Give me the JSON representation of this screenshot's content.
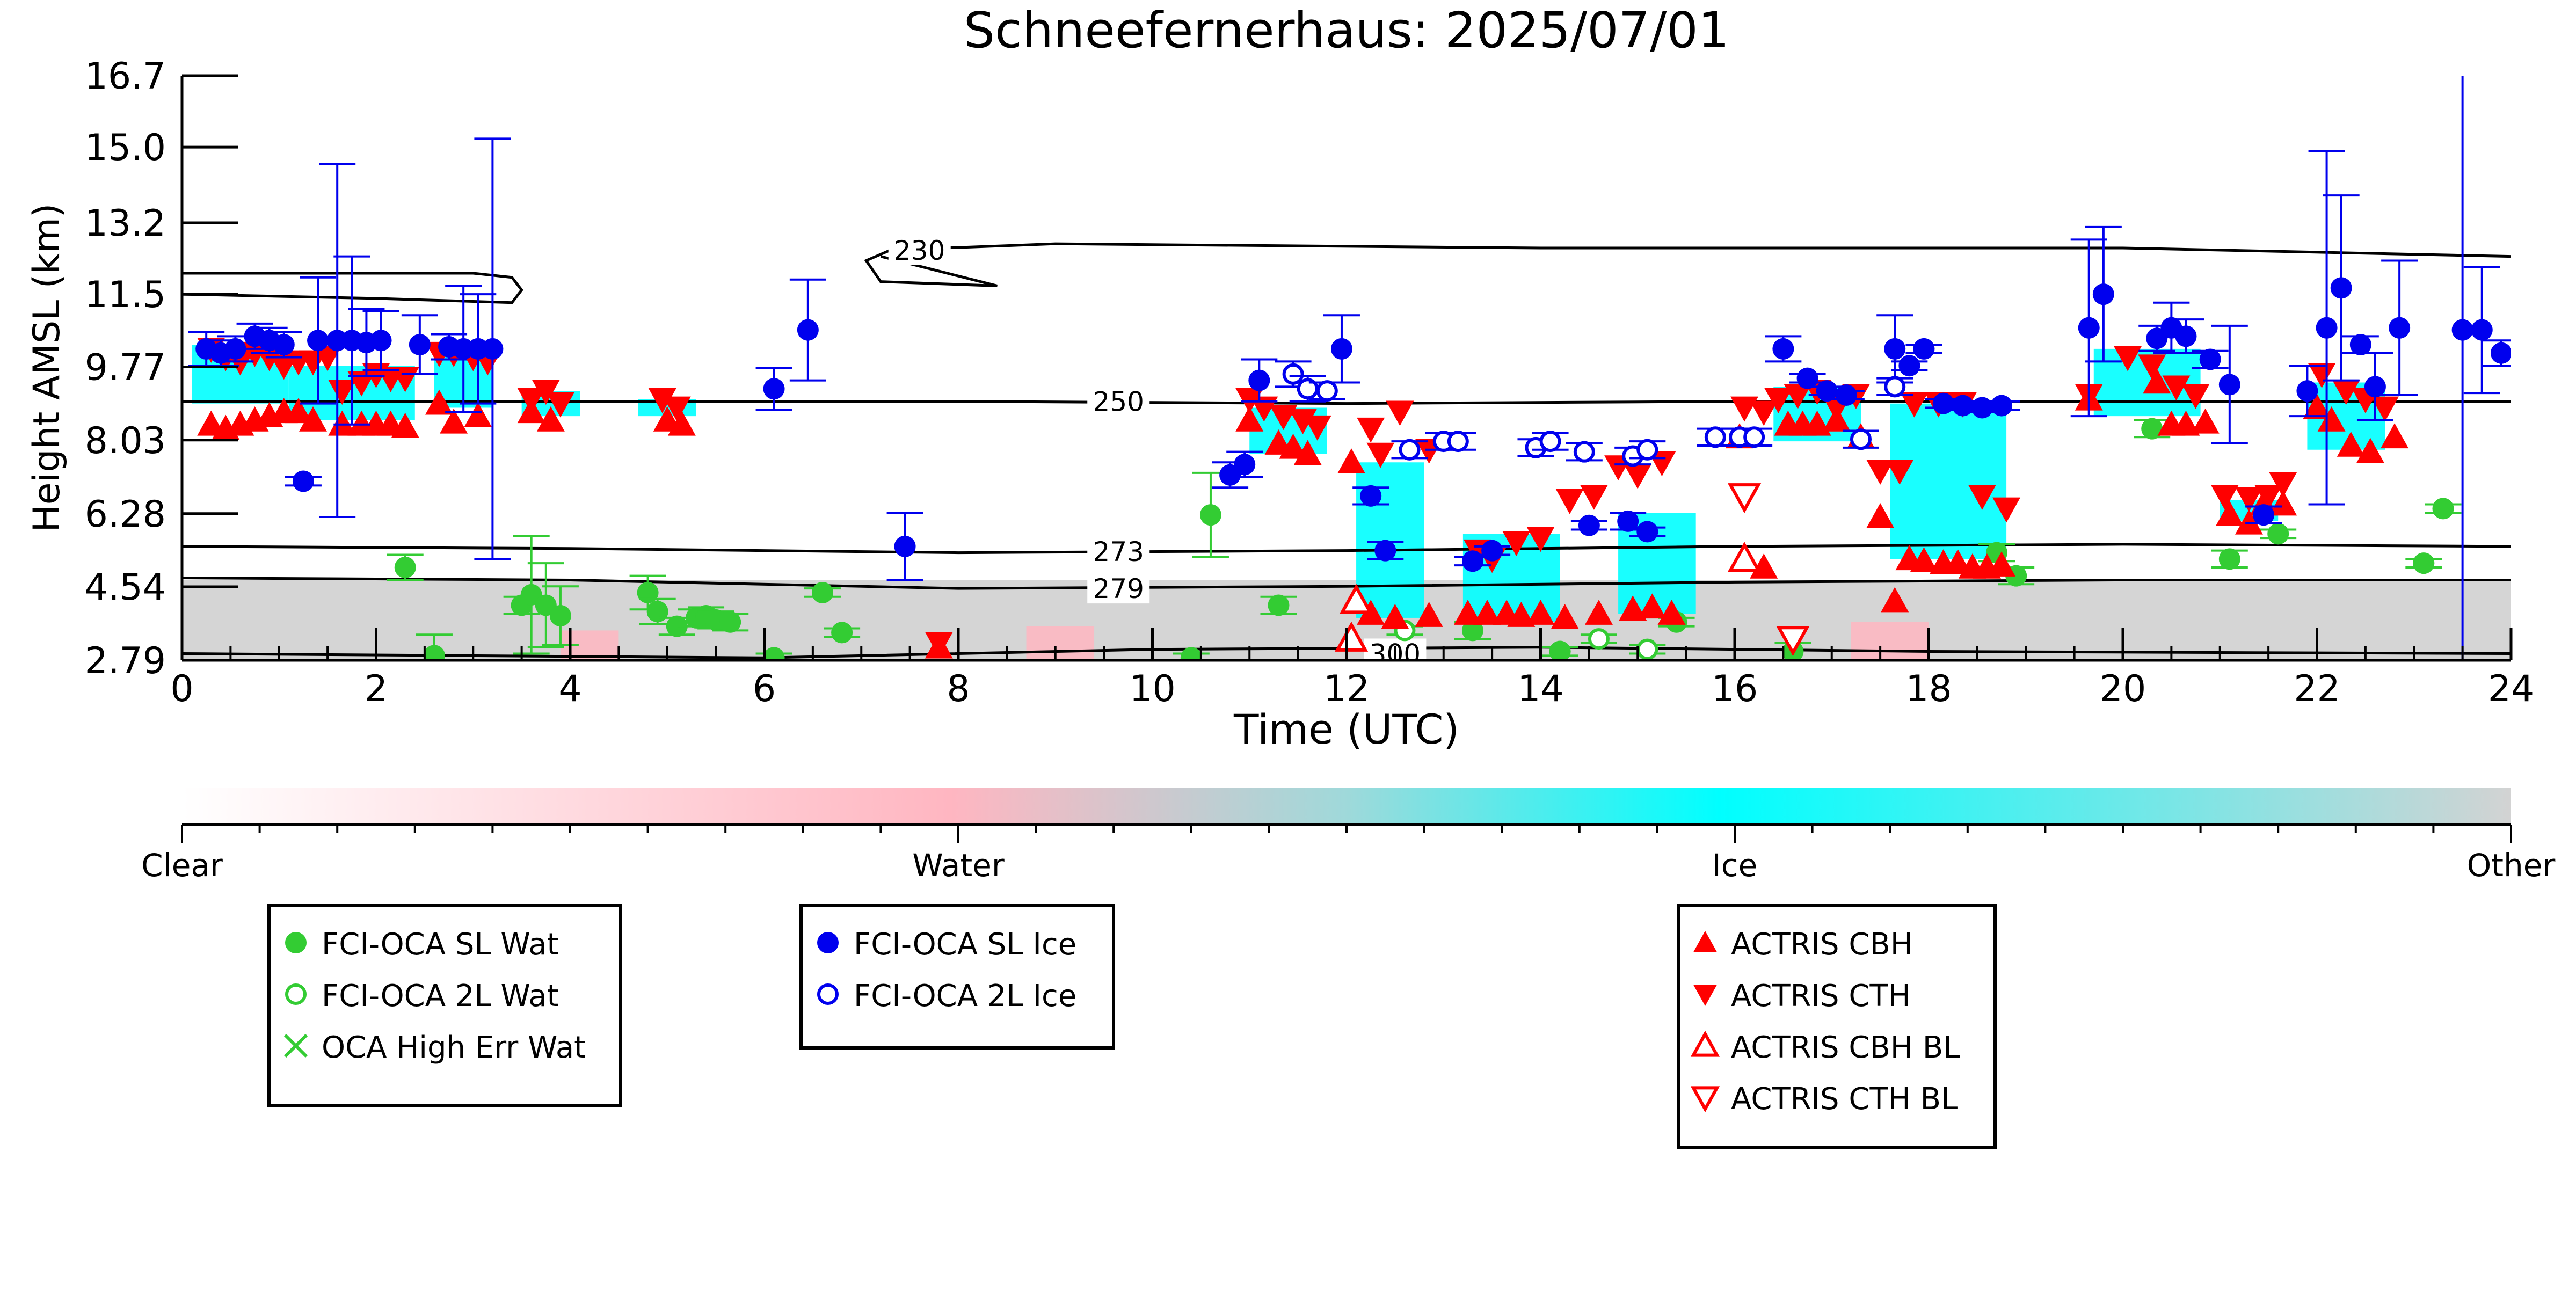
{
  "chart_data": {
    "type": "scatter",
    "title": "Schneefernerhaus: 2025/07/01",
    "xlabel": "Time (UTC)",
    "ylabel": "Height AMSL (km)",
    "xlim": [
      0,
      24
    ],
    "ylim": [
      2.79,
      16.7
    ],
    "x_ticks": [
      "0",
      "2",
      "4",
      "6",
      "8",
      "10",
      "12",
      "14",
      "16",
      "18",
      "20",
      "22",
      "24"
    ],
    "y_ticks": [
      "2.79",
      "4.54",
      "6.28",
      "8.03",
      "9.77",
      "11.5",
      "13.2",
      "15.0",
      "16.7"
    ],
    "colorbar": {
      "labels": [
        "Clear",
        "Water",
        "Ice",
        "Other"
      ],
      "colors": [
        "#ffffff",
        "#ffb6c1",
        "#00ffff",
        "#d3d3d3"
      ]
    },
    "isotherms": [
      {
        "label": "230",
        "points": [
          [
            0,
            11.5
          ],
          [
            2,
            11.4
          ],
          [
            3.4,
            11.3
          ],
          [
            3.5,
            11.6
          ],
          [
            3.4,
            11.9
          ],
          [
            3,
            12.0
          ],
          [
            0,
            12.0
          ]
        ],
        "extra": [
          [
            7.2,
            12.4
          ],
          [
            8.4,
            11.7
          ],
          [
            7.2,
            11.8
          ],
          [
            7.05,
            12.3
          ],
          [
            7.3,
            12.55
          ],
          [
            9,
            12.7
          ],
          [
            14,
            12.6
          ],
          [
            20,
            12.6
          ],
          [
            24,
            12.4
          ]
        ]
      },
      {
        "label": "250",
        "points": [
          [
            0,
            8.95
          ],
          [
            4,
            8.95
          ],
          [
            8,
            8.95
          ],
          [
            12,
            8.9
          ],
          [
            16,
            8.95
          ],
          [
            20,
            8.95
          ],
          [
            24,
            8.95
          ]
        ]
      },
      {
        "label": "273",
        "points": [
          [
            0,
            5.5
          ],
          [
            4,
            5.45
          ],
          [
            8,
            5.35
          ],
          [
            12,
            5.4
          ],
          [
            16,
            5.5
          ],
          [
            20,
            5.55
          ],
          [
            24,
            5.5
          ]
        ]
      },
      {
        "label": "279",
        "points": [
          [
            0,
            4.75
          ],
          [
            4,
            4.7
          ],
          [
            8,
            4.5
          ],
          [
            12,
            4.55
          ],
          [
            16,
            4.65
          ],
          [
            20,
            4.7
          ],
          [
            24,
            4.7
          ]
        ]
      },
      {
        "label": "300",
        "points": [
          [
            0,
            2.95
          ],
          [
            6,
            2.85
          ],
          [
            10,
            3.05
          ],
          [
            14,
            3.1
          ],
          [
            18,
            3.0
          ],
          [
            24,
            2.95
          ]
        ]
      }
    ],
    "ice_regions": [
      [
        0.1,
        1.1,
        8.9,
        10.3
      ],
      [
        1.1,
        2.4,
        8.5,
        9.8
      ],
      [
        2.6,
        3.2,
        8.8,
        10.1
      ],
      [
        3.5,
        4.1,
        8.6,
        9.2
      ],
      [
        4.7,
        5.3,
        8.6,
        9.0
      ],
      [
        11.0,
        11.8,
        7.7,
        8.8
      ],
      [
        12.1,
        12.8,
        3.8,
        7.5
      ],
      [
        13.2,
        14.2,
        3.7,
        5.8
      ],
      [
        14.8,
        15.6,
        3.9,
        6.3
      ],
      [
        16.4,
        17.3,
        8.0,
        9.3
      ],
      [
        17.6,
        18.8,
        5.2,
        8.9
      ],
      [
        19.7,
        20.8,
        8.6,
        10.2
      ],
      [
        21.0,
        21.6,
        6.1,
        6.6
      ],
      [
        21.9,
        22.7,
        7.8,
        9.4
      ]
    ],
    "other_regions": [
      [
        0,
        24,
        2.79,
        4.7
      ]
    ],
    "water_regions": [
      [
        3.9,
        4.5,
        2.79,
        3.5
      ],
      [
        8.7,
        9.4,
        2.79,
        3.6
      ],
      [
        17.2,
        18.0,
        2.79,
        3.7
      ]
    ],
    "series": [
      {
        "name": "FCI-OCA SL Wat",
        "marker": "circle-filled",
        "color": "#33cc33",
        "x": [
          2.3,
          2.6,
          3.5,
          3.6,
          3.75,
          3.9,
          4.8,
          4.9,
          5.1,
          5.3,
          5.4,
          5.5,
          5.65,
          6.1,
          6.6,
          6.8,
          10.4,
          10.6,
          11.3,
          13.3,
          14.2,
          15.4,
          16.6,
          18.7,
          18.9,
          20.3,
          21.1,
          21.6,
          23.1,
          23.3
        ],
        "y": [
          5.0,
          2.9,
          4.1,
          4.35,
          4.1,
          3.85,
          4.4,
          3.95,
          3.6,
          3.8,
          3.85,
          3.75,
          3.7,
          2.85,
          4.4,
          3.45,
          2.85,
          6.25,
          4.1,
          3.5,
          3.0,
          3.7,
          3.0,
          5.35,
          4.8,
          8.3,
          5.2,
          5.8,
          5.1,
          6.4
        ],
        "err": [
          0.3,
          0.5,
          0.2,
          1.4,
          1.0,
          0.7,
          0.4,
          0.3,
          0.2,
          0.2,
          0.2,
          0.2,
          0.2,
          0.1,
          0.1,
          0.1,
          0.1,
          1.0,
          0.2,
          0.2,
          0.1,
          0.1,
          0.2,
          0.2,
          0.2,
          0.2,
          0.2,
          0.1,
          0.1,
          0.1
        ]
      },
      {
        "name": "FCI-OCA 2L Wat",
        "marker": "circle-open",
        "color": "#33cc33",
        "x": [
          12.6,
          14.6,
          15.1
        ],
        "y": [
          3.5,
          3.3,
          3.05
        ],
        "err": [
          0.1,
          0.1,
          0.1
        ]
      },
      {
        "name": "OCA High Err Wat",
        "marker": "x",
        "color": "#33cc33",
        "x": [],
        "y": []
      },
      {
        "name": "FCI-OCA SL Ice",
        "marker": "circle-filled",
        "color": "#0000ee",
        "x": [
          0.25,
          0.4,
          0.55,
          0.75,
          0.9,
          1.05,
          1.25,
          1.4,
          1.6,
          1.75,
          1.9,
          2.05,
          2.45,
          2.75,
          2.9,
          3.05,
          3.2,
          6.1,
          6.45,
          7.45,
          10.8,
          10.95,
          11.1,
          11.95,
          12.25,
          12.4,
          13.3,
          13.5,
          14.5,
          14.9,
          15.1,
          16.5,
          16.75,
          16.95,
          17.15,
          17.65,
          17.8,
          17.95,
          18.15,
          18.35,
          18.55,
          18.75,
          19.65,
          19.8,
          20.35,
          20.5,
          20.65,
          20.9,
          21.1,
          21.45,
          21.9,
          22.1,
          22.25,
          22.45,
          22.6,
          22.85,
          23.5,
          23.7,
          23.9
        ],
        "y": [
          10.2,
          10.1,
          10.2,
          10.5,
          10.4,
          10.3,
          7.05,
          10.4,
          10.4,
          10.4,
          10.35,
          10.4,
          10.3,
          10.25,
          10.2,
          10.2,
          10.2,
          9.25,
          10.65,
          5.5,
          7.2,
          7.45,
          9.45,
          10.2,
          6.7,
          5.4,
          5.15,
          5.4,
          6.0,
          6.1,
          5.85,
          10.2,
          9.5,
          9.2,
          9.1,
          10.2,
          9.8,
          10.2,
          8.9,
          8.85,
          8.8,
          8.85,
          10.7,
          11.5,
          10.45,
          10.7,
          10.5,
          9.95,
          9.35,
          6.25,
          9.2,
          10.7,
          11.65,
          10.3,
          9.3,
          10.7,
          10.65,
          10.65,
          10.1
        ],
        "err": [
          0.4,
          0.3,
          0.3,
          0.3,
          0.3,
          0.3,
          0.1,
          1.5,
          4.2,
          2.0,
          0.8,
          0.7,
          0.7,
          0.3,
          1.5,
          1.3,
          5.0,
          0.5,
          1.2,
          0.8,
          0.3,
          0.3,
          0.5,
          0.8,
          0.2,
          0.2,
          0.1,
          0.1,
          0.1,
          0.2,
          0.1,
          0.3,
          0.1,
          0.1,
          0.1,
          0.8,
          0.1,
          0.1,
          0.1,
          0.1,
          0.1,
          0.1,
          2.1,
          1.6,
          0.3,
          0.6,
          0.4,
          0.2,
          1.4,
          0.2,
          0.6,
          4.2,
          2.2,
          0.2,
          0.8,
          1.6,
          8.0,
          1.5,
          0.3
        ]
      },
      {
        "name": "FCI-OCA 2L Ice",
        "marker": "circle-open",
        "color": "#0000ee",
        "x": [
          11.45,
          11.6,
          11.8,
          12.65,
          13.0,
          13.15,
          13.95,
          14.1,
          14.45,
          14.95,
          15.1,
          15.8,
          16.05,
          16.2,
          17.3,
          17.65
        ],
        "y": [
          9.6,
          9.25,
          9.2,
          7.8,
          8.0,
          8.0,
          7.85,
          8.0,
          7.75,
          7.65,
          7.8,
          8.1,
          8.1,
          8.1,
          8.05,
          9.3
        ],
        "err": [
          0.3,
          0.3,
          0.2,
          0.2,
          0.2,
          0.2,
          0.2,
          0.2,
          0.2,
          0.2,
          0.2,
          0.2,
          0.2,
          0.2,
          0.2,
          0.2
        ]
      },
      {
        "name": "ACTRIS CBH",
        "marker": "triangle-up-filled",
        "color": "#ff0000",
        "x": [
          0.3,
          0.45,
          0.6,
          0.75,
          0.9,
          1.05,
          1.2,
          1.35,
          1.65,
          1.85,
          2.0,
          2.15,
          2.3,
          2.65,
          2.8,
          3.05,
          3.6,
          3.8,
          5.0,
          5.15,
          7.8,
          11.0,
          11.3,
          11.45,
          11.6,
          12.05,
          12.25,
          12.5,
          12.85,
          13.25,
          13.45,
          13.65,
          13.8,
          14.0,
          14.25,
          14.6,
          14.95,
          15.15,
          15.35,
          16.05,
          16.3,
          16.55,
          16.7,
          16.85,
          17.05,
          17.3,
          17.5,
          17.65,
          17.8,
          17.95,
          18.15,
          18.3,
          18.45,
          18.6,
          18.75,
          19.65,
          20.35,
          20.5,
          20.65,
          20.85,
          21.1,
          21.3,
          21.45,
          21.65,
          22.0,
          22.15,
          22.35,
          22.55,
          22.8
        ],
        "y": [
          8.4,
          8.3,
          8.4,
          8.5,
          8.6,
          8.7,
          8.7,
          8.5,
          8.4,
          8.4,
          8.4,
          8.4,
          8.35,
          8.9,
          8.45,
          8.6,
          8.7,
          8.5,
          8.5,
          8.4,
          3.1,
          8.5,
          7.95,
          7.85,
          7.7,
          7.5,
          3.9,
          3.8,
          3.85,
          3.9,
          3.9,
          3.9,
          3.85,
          3.9,
          3.8,
          3.9,
          4.0,
          4.05,
          3.9,
          8.1,
          5.0,
          8.4,
          8.4,
          8.4,
          8.5,
          8.1,
          6.2,
          4.2,
          5.2,
          5.15,
          5.1,
          5.1,
          5.0,
          5.0,
          5.05,
          9.0,
          9.4,
          8.4,
          8.4,
          8.45,
          6.25,
          6.05,
          6.5,
          6.5,
          8.8,
          8.5,
          7.9,
          7.75,
          8.1
        ],
        "err": []
      },
      {
        "name": "ACTRIS CTH",
        "marker": "triangle-down-filled",
        "color": "#ff0000",
        "x": [
          0.3,
          0.45,
          0.6,
          0.75,
          0.9,
          1.05,
          1.2,
          1.35,
          1.5,
          1.65,
          1.85,
          2.0,
          2.15,
          2.3,
          2.65,
          2.8,
          3.0,
          3.15,
          3.6,
          3.75,
          3.9,
          4.95,
          5.1,
          7.8,
          11.0,
          11.15,
          11.35,
          11.55,
          11.7,
          12.25,
          12.35,
          12.55,
          12.85,
          13.35,
          13.5,
          13.75,
          14.0,
          14.3,
          14.55,
          14.8,
          15.0,
          15.25,
          16.1,
          16.3,
          16.45,
          16.65,
          16.85,
          17.05,
          17.25,
          17.5,
          17.7,
          17.85,
          18.1,
          18.35,
          18.55,
          18.8,
          19.65,
          20.05,
          20.3,
          20.55,
          20.75,
          21.05,
          21.3,
          21.5,
          21.65,
          22.05,
          22.3,
          22.5,
          22.7
        ],
        "y": [
          10.2,
          10.0,
          9.9,
          10.1,
          10.0,
          9.8,
          9.9,
          9.9,
          10.0,
          9.2,
          9.4,
          9.6,
          9.5,
          9.5,
          10.1,
          10.1,
          10.0,
          9.9,
          9.0,
          9.2,
          8.9,
          9.0,
          8.8,
          3.2,
          9.0,
          8.8,
          8.6,
          8.5,
          8.35,
          8.3,
          7.7,
          8.7,
          7.8,
          5.4,
          5.2,
          5.6,
          5.7,
          6.6,
          6.7,
          7.4,
          7.2,
          7.5,
          8.8,
          8.7,
          9.0,
          9.1,
          9.2,
          8.8,
          9.1,
          7.3,
          7.3,
          8.9,
          8.9,
          8.9,
          6.7,
          6.4,
          9.1,
          10.0,
          9.8,
          9.3,
          9.1,
          6.7,
          6.65,
          6.7,
          7.0,
          9.6,
          9.2,
          9.0,
          8.8
        ],
        "err": []
      },
      {
        "name": "ACTRIS CBH BL",
        "marker": "triangle-up-open",
        "color": "#ff0000",
        "x": [
          12.05,
          12.1,
          16.1
        ],
        "y": [
          3.3,
          4.2,
          5.2
        ],
        "err": []
      },
      {
        "name": "ACTRIS CTH BL",
        "marker": "triangle-down-open",
        "color": "#ff0000",
        "x": [
          16.1,
          16.6
        ],
        "y": [
          6.7,
          3.3
        ],
        "err": []
      }
    ],
    "legend": {
      "placement": "below"
    }
  }
}
